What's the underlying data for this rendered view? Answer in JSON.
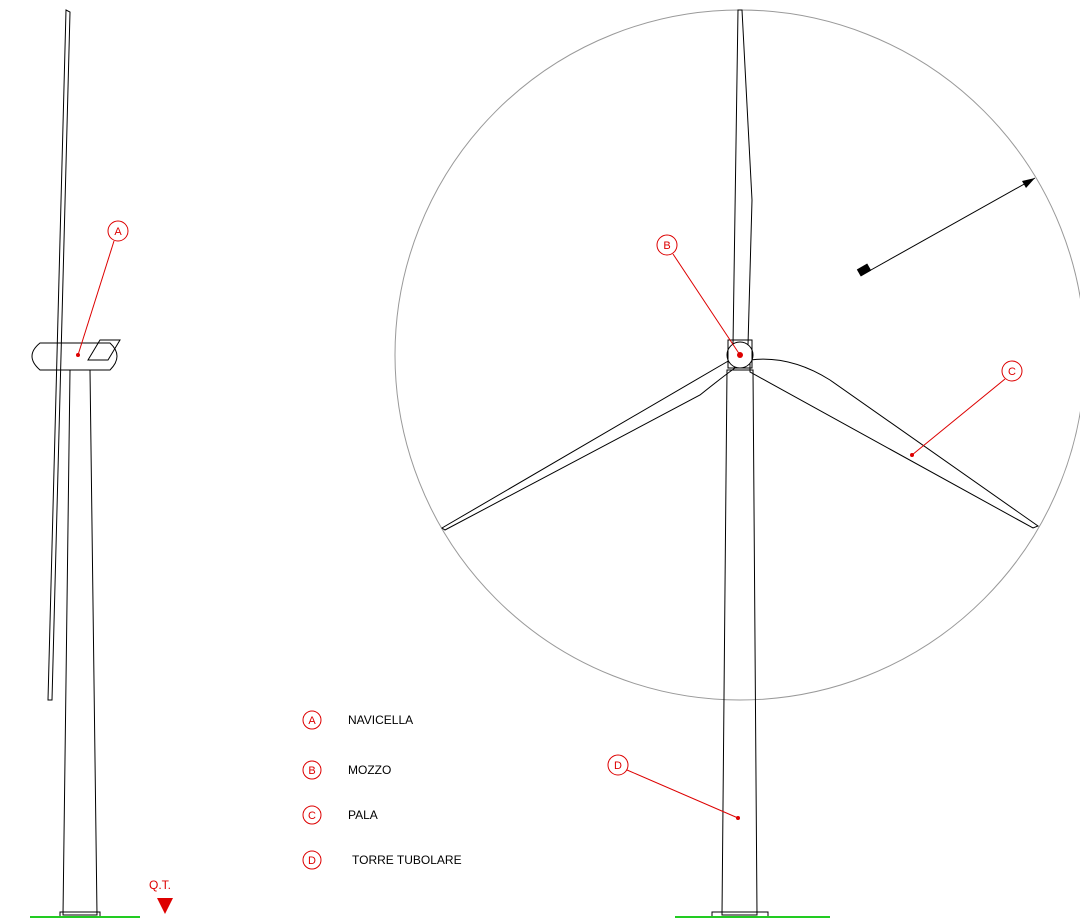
{
  "legend": [
    {
      "letter": "A",
      "label": "NAVICELLA"
    },
    {
      "letter": "B",
      "label": "MOZZO"
    },
    {
      "letter": "C",
      "label": "PALA"
    },
    {
      "letter": "D",
      "label": "TORRE TUBOLARE"
    }
  ],
  "ground_label": "Q.T."
}
